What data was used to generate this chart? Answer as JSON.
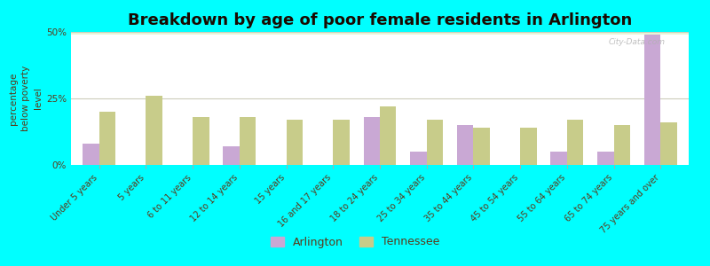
{
  "title": "Breakdown by age of poor female residents in Arlington",
  "ylabel": "percentage\nbelow poverty\nlevel",
  "categories": [
    "Under 5 years",
    "5 years",
    "6 to 11 years",
    "12 to 14 years",
    "15 years",
    "16 and 17 years",
    "18 to 24 years",
    "25 to 34 years",
    "35 to 44 years",
    "45 to 54 years",
    "55 to 64 years",
    "65 to 74 years",
    "75 years and over"
  ],
  "arlington": [
    8,
    0,
    0,
    7,
    0,
    0,
    18,
    5,
    15,
    0,
    5,
    5,
    49
  ],
  "tennessee": [
    20,
    26,
    18,
    18,
    17,
    17,
    22,
    17,
    14,
    14,
    17,
    15,
    16
  ],
  "arlington_color": "#c9a8d4",
  "tennessee_color": "#c8cc8a",
  "background_color": "#00ffff",
  "ylim": [
    0,
    50
  ],
  "yticks": [
    0,
    25,
    50
  ],
  "ytick_labels": [
    "0%",
    "25%",
    "50%"
  ],
  "bar_width": 0.35,
  "title_fontsize": 13,
  "tick_fontsize": 7,
  "ylabel_fontsize": 7.5,
  "legend_fontsize": 9,
  "text_color": "#5a3a1a",
  "title_color": "#1a0a00"
}
